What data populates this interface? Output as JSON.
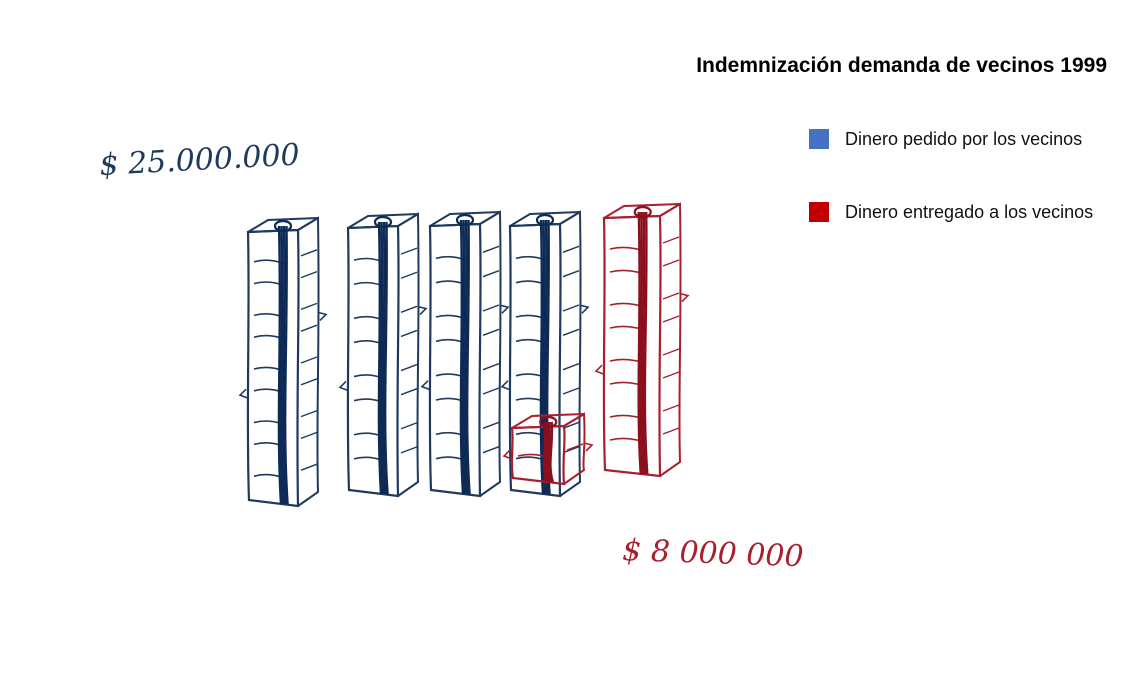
{
  "chart_data": {
    "type": "bar",
    "title": "Indemnización demanda de vecinos 1999",
    "categories": [
      "Dinero pedido por los vecinos",
      "Dinero entregado a los vecinos"
    ],
    "values": [
      25000000,
      8000000
    ],
    "data_labels": [
      "$ 25.000.000",
      "$ 8 000 000"
    ],
    "legend": [
      {
        "label": "Dinero pedido por los vecinos",
        "color": "#4472C4"
      },
      {
        "label": "Dinero entregado a los vecinos",
        "color": "#C00000"
      }
    ],
    "legend_position": "top-right",
    "unit_per_stack": 5000000,
    "grid": false
  },
  "colors": {
    "requested_stroke": "#1f3a5c",
    "requested_band": "#0d2a55",
    "delivered_stroke": "#a8202e",
    "delivered_band": "#8b0f1c"
  },
  "icons": {
    "money_stack": "money-stack-icon"
  }
}
